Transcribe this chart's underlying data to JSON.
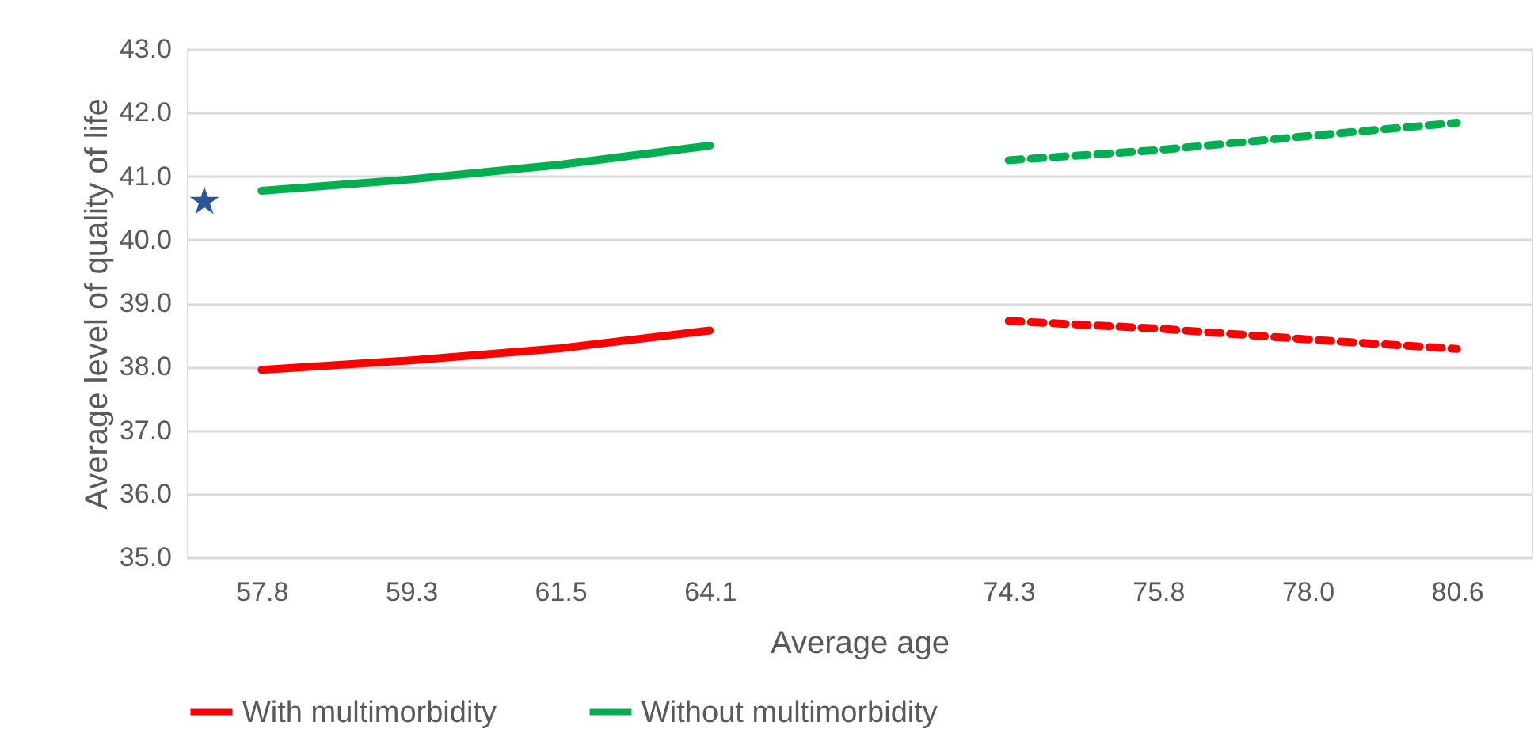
{
  "chart_data": {
    "type": "line",
    "xlabel": "Average age",
    "ylabel": "Average level of quality of life",
    "categories": [
      "57.8",
      "59.3",
      "61.5",
      "64.1",
      null,
      "74.3",
      "75.8",
      "78.0",
      "80.6"
    ],
    "series": [
      {
        "name": "With multimorbidity",
        "color": "#ff0000",
        "line_style": "solid",
        "values": [
          37.95,
          38.1,
          38.29,
          38.57,
          null,
          null,
          null,
          null,
          null
        ]
      },
      {
        "name": "Without multimorbidity",
        "color": "#00b050",
        "line_style": "solid",
        "values": [
          40.77,
          40.95,
          41.18,
          41.48,
          null,
          null,
          null,
          null,
          null
        ]
      },
      {
        "color": "#ff0000",
        "line_style": "dashed",
        "values": [
          null,
          null,
          null,
          null,
          null,
          38.72,
          38.6,
          38.43,
          38.28
        ]
      },
      {
        "color": "#00b050",
        "line_style": "dashed",
        "values": [
          null,
          null,
          null,
          null,
          null,
          41.25,
          41.41,
          41.63,
          41.84
        ]
      }
    ],
    "annotations": [
      "★"
    ],
    "ylim": [
      35,
      43
    ],
    "yticks": [
      {
        "value": 35,
        "label": "35.0"
      },
      {
        "value": 36,
        "label": "36.0"
      },
      {
        "value": 37,
        "label": "37.0"
      },
      {
        "value": 38,
        "label": "38.0"
      },
      {
        "value": 39,
        "label": "39.0"
      },
      {
        "value": 40,
        "label": "40.0"
      },
      {
        "value": 41,
        "label": "41.0"
      },
      {
        "value": 42,
        "label": "42.0"
      },
      {
        "value": 43,
        "label": "43.0"
      }
    ],
    "grid": "y",
    "legend": "bottom",
    "marker": "none"
  }
}
